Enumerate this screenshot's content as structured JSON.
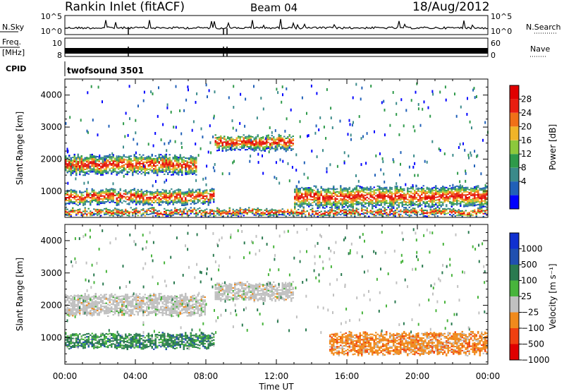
{
  "header": {
    "title": "Rankin Inlet (fitACF)",
    "beam": "Beam 04",
    "date": "18/Aug/2012"
  },
  "strips": {
    "nsky_label": "N.Sky",
    "nsky_ticks": [
      "10^5",
      "10^0"
    ],
    "nsearch_label": "N.Search",
    "freq_label_top": "Freq.",
    "freq_label_unit": "[MHz]",
    "freq_ticks": [
      "10",
      "8"
    ],
    "nave_label": "Nave",
    "nave_ticks": [
      "60",
      "0"
    ],
    "cpid_label": "CPID",
    "cpid_value": "twofsound 3501"
  },
  "colors": {
    "power": [
      "#0000ff",
      "#2060b8",
      "#3a8a8a",
      "#2e9a4a",
      "#8cc83c",
      "#f0b428",
      "#f07018",
      "#e81e10",
      "#e00000"
    ],
    "velocity": [
      "#e00000",
      "#f04010",
      "#f08a1c",
      "#c0c0c0",
      "#48b43c",
      "#2a7a50",
      "#2050b0",
      "#1030d0"
    ]
  },
  "chart_data": [
    {
      "type": "heatmap",
      "panel": "power",
      "xlabel": "",
      "ylabel": "Slant Range [km]",
      "x_ticks": [
        "00:00",
        "04:00",
        "08:00",
        "12:00",
        "16:00",
        "20:00",
        "00:00"
      ],
      "xlim_hours": [
        0,
        24
      ],
      "ylim_km": [
        180,
        4500
      ],
      "y_ticks": [
        1000,
        2000,
        3000,
        4000
      ],
      "colorbar_label": "Power [dB]",
      "colorbar_ticks": [
        "28",
        "24",
        "20",
        "16",
        "12",
        "8",
        "4"
      ],
      "echo_bands": [
        {
          "start_h": 0,
          "end_h": 8.5,
          "center_km": 800,
          "width_km": 420
        },
        {
          "start_h": 0,
          "end_h": 7.5,
          "center_km": 1800,
          "width_km": 550
        },
        {
          "start_h": 8.5,
          "end_h": 13,
          "center_km": 2500,
          "width_km": 450
        },
        {
          "start_h": 13,
          "end_h": 24,
          "center_km": 800,
          "width_km": 600
        },
        {
          "start_h": 0,
          "end_h": 24,
          "center_km": 320,
          "width_km": 200
        }
      ]
    },
    {
      "type": "heatmap",
      "panel": "velocity",
      "xlabel": "Time UT",
      "ylabel": "Slant Range [km]",
      "x_ticks": [
        "00:00",
        "04:00",
        "08:00",
        "12:00",
        "16:00",
        "20:00",
        "00:00"
      ],
      "xlim_hours": [
        0,
        24
      ],
      "ylim_km": [
        180,
        4500
      ],
      "y_ticks": [
        1000,
        2000,
        3000,
        4000
      ],
      "colorbar_label": "Velocity [m s⁻¹]",
      "colorbar_ticks": [
        "1000",
        "500",
        "100",
        "25",
        "−25",
        "−100",
        "−500",
        "−1000"
      ],
      "echo_bands": [
        {
          "start_h": 0,
          "end_h": 8.5,
          "center_km": 900,
          "width_km": 450,
          "velocity_class": "positive"
        },
        {
          "start_h": 0,
          "end_h": 8,
          "center_km": 2000,
          "width_km": 600,
          "velocity_class": "ground"
        },
        {
          "start_h": 8.5,
          "end_h": 13,
          "center_km": 2400,
          "width_km": 500,
          "velocity_class": "ground"
        },
        {
          "start_h": 15,
          "end_h": 24,
          "center_km": 800,
          "width_km": 650,
          "velocity_class": "negative"
        }
      ]
    }
  ]
}
